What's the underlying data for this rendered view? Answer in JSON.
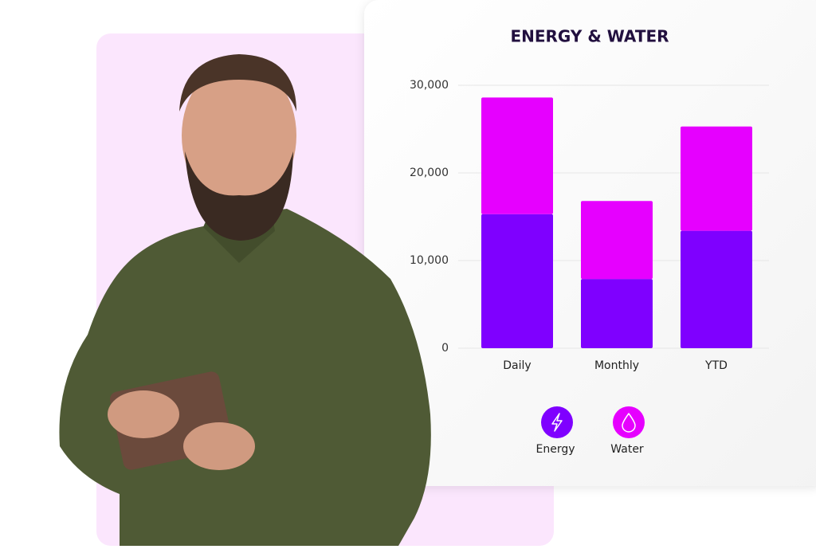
{
  "chart_data": {
    "type": "stacked-bar",
    "title": "ENERGY & WATER",
    "categories": [
      "Daily",
      "Monthly",
      "YTD"
    ],
    "series": [
      {
        "name": "Energy",
        "color": "#7f00ff",
        "values": [
          15300,
          7900,
          13400
        ]
      },
      {
        "name": "Water",
        "color": "#e600ff",
        "values": [
          13300,
          8900,
          11900
        ]
      }
    ],
    "ylim": [
      0,
      30000
    ],
    "yticks": [
      0,
      {
        "value": 10000,
        "label": "10,000"
      },
      {
        "value": 20000,
        "label": "20,000"
      },
      {
        "value": 30000,
        "label": "30,000"
      }
    ],
    "grid": true
  }
}
